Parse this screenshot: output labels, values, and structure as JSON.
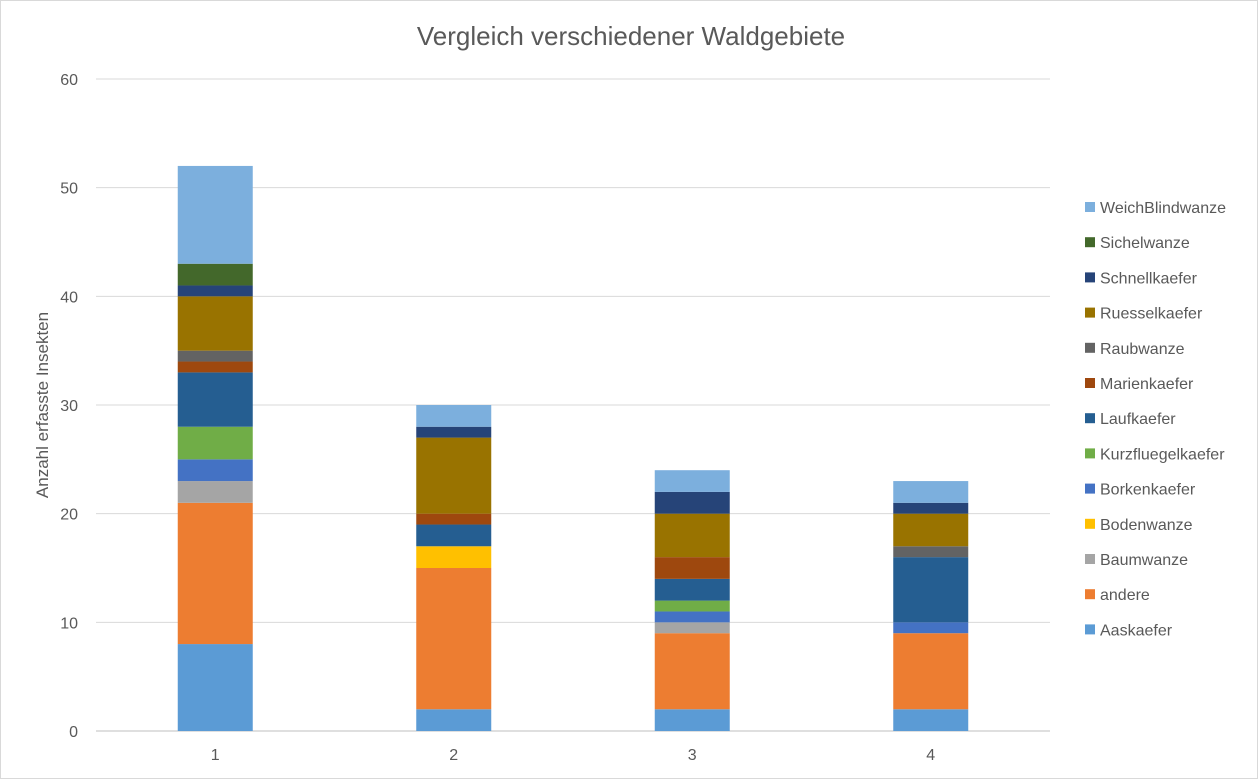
{
  "chart_data": {
    "type": "bar",
    "stacked": true,
    "title": "Vergleich verschiedener  Waldgebiete",
    "xlabel": "",
    "ylabel": "Anzahl erfasste Insekten",
    "ylim": [
      0,
      60
    ],
    "yticks": [
      0,
      10,
      20,
      30,
      40,
      50,
      60
    ],
    "grid": true,
    "legend_position": "right",
    "categories": [
      "1",
      "2",
      "3",
      "4"
    ],
    "series": [
      {
        "name": "Aaskaefer",
        "color": "#5B9BD5",
        "values": [
          8,
          2,
          2,
          2
        ]
      },
      {
        "name": "andere",
        "color": "#ED7D31",
        "values": [
          13,
          13,
          7,
          7
        ]
      },
      {
        "name": "Baumwanze",
        "color": "#A5A5A5",
        "values": [
          2,
          0,
          1,
          0
        ]
      },
      {
        "name": "Bodenwanze",
        "color": "#FFC000",
        "values": [
          0,
          2,
          0,
          0
        ]
      },
      {
        "name": "Borkenkaefer",
        "color": "#4472C4",
        "values": [
          2,
          0,
          1,
          1
        ]
      },
      {
        "name": "Kurzfluegelkaefer",
        "color": "#70AD47",
        "values": [
          3,
          0,
          1,
          0
        ]
      },
      {
        "name": "Laufkaefer",
        "color": "#255E91",
        "values": [
          5,
          2,
          2,
          6
        ]
      },
      {
        "name": "Marienkaefer",
        "color": "#9E480E",
        "values": [
          1,
          1,
          2,
          0
        ]
      },
      {
        "name": "Raubwanze",
        "color": "#636363",
        "values": [
          1,
          0,
          0,
          1
        ]
      },
      {
        "name": "Ruesselkaefer",
        "color": "#997300",
        "values": [
          5,
          7,
          4,
          3
        ]
      },
      {
        "name": "Schnellkaefer",
        "color": "#264478",
        "values": [
          1,
          1,
          2,
          1
        ]
      },
      {
        "name": "Sichelwanze",
        "color": "#43682B",
        "values": [
          2,
          0,
          0,
          0
        ]
      },
      {
        "name": "WeichBlindwanze",
        "color": "#7CAFDD",
        "values": [
          9,
          2,
          2,
          2
        ]
      }
    ]
  }
}
